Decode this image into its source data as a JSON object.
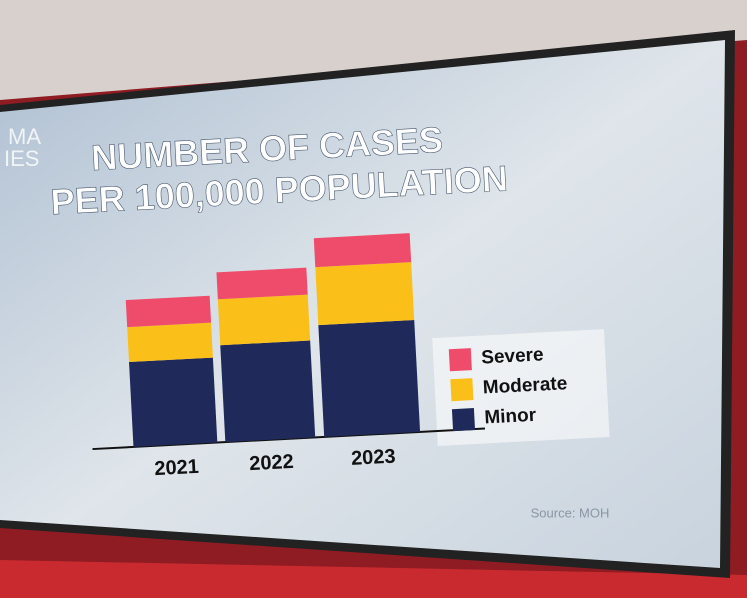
{
  "screen_text": [
    "MA",
    "IES"
  ],
  "chart_data": {
    "type": "stacked-bar",
    "title": [
      "NUMBER OF CASES",
      "PER 100,000 POPULATION"
    ],
    "categories": [
      "2021",
      "2022",
      "2023"
    ],
    "series": [
      {
        "name": "Severe",
        "color": "#ef4b6a",
        "values": [
          27,
          27,
          29
        ]
      },
      {
        "name": "Moderate",
        "color": "#fbbf1a",
        "values": [
          35,
          46,
          58
        ]
      },
      {
        "name": "Minor",
        "color": "#1f2a5a",
        "values": [
          85,
          97,
          112
        ]
      }
    ],
    "ylim": [
      0,
      200
    ],
    "source": "Source: MOH"
  }
}
